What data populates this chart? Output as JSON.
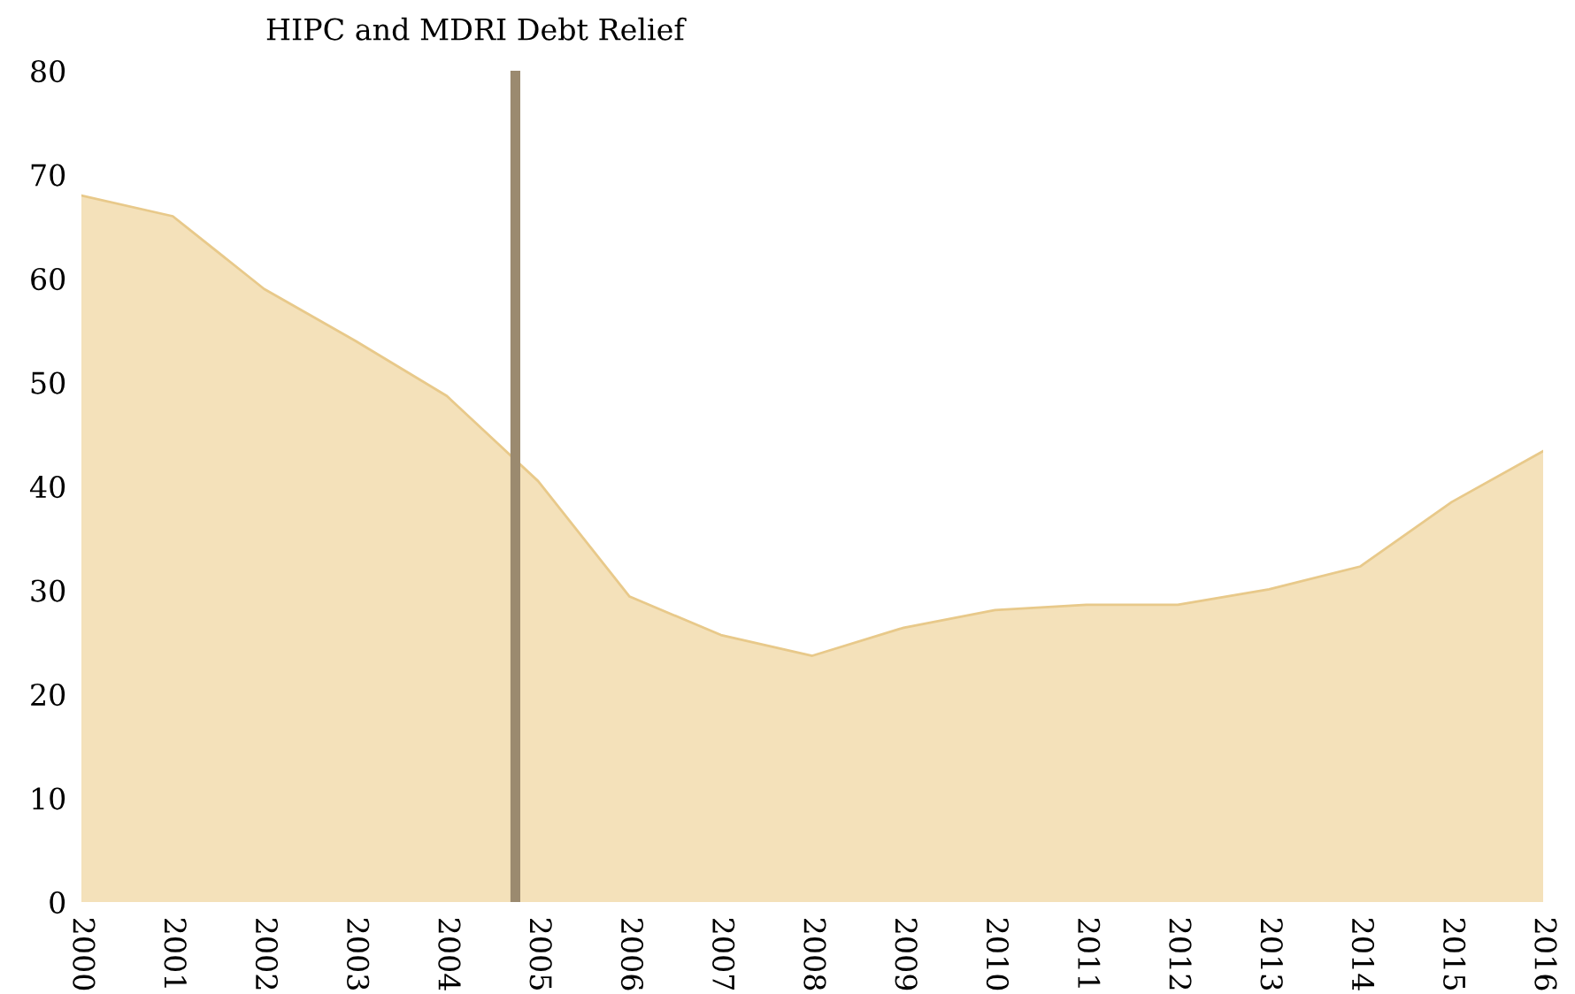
{
  "chart_data": {
    "type": "area",
    "title": "HIPC and MDRI Debt Relief",
    "x": [
      2000,
      2001,
      2002,
      2003,
      2004,
      2005,
      2006,
      2007,
      2008,
      2009,
      2010,
      2011,
      2012,
      2013,
      2014,
      2015,
      2016
    ],
    "series": [
      {
        "color": "#f2dcae",
        "values": [
          68,
          66,
          59,
          54,
          48.7,
          40.5,
          29.4,
          25.7,
          23.7,
          26.4,
          28.1,
          28.6,
          28.6,
          30.1,
          32.3,
          38.5,
          43.4
        ]
      }
    ],
    "xlim": [
      2000,
      2016
    ],
    "xticks": [
      2000,
      2001,
      2002,
      2003,
      2004,
      2005,
      2006,
      2007,
      2008,
      2009,
      2010,
      2011,
      2012,
      2013,
      2014,
      2015,
      2016
    ],
    "ylim": [
      0,
      80
    ],
    "yticks": [
      0,
      10,
      20,
      30,
      40,
      50,
      60,
      70,
      80
    ],
    "ref_lines": [
      {
        "axis": "x",
        "value": 2004.75,
        "color": "#9b8a6f"
      }
    ],
    "grid": false,
    "legend": false
  }
}
